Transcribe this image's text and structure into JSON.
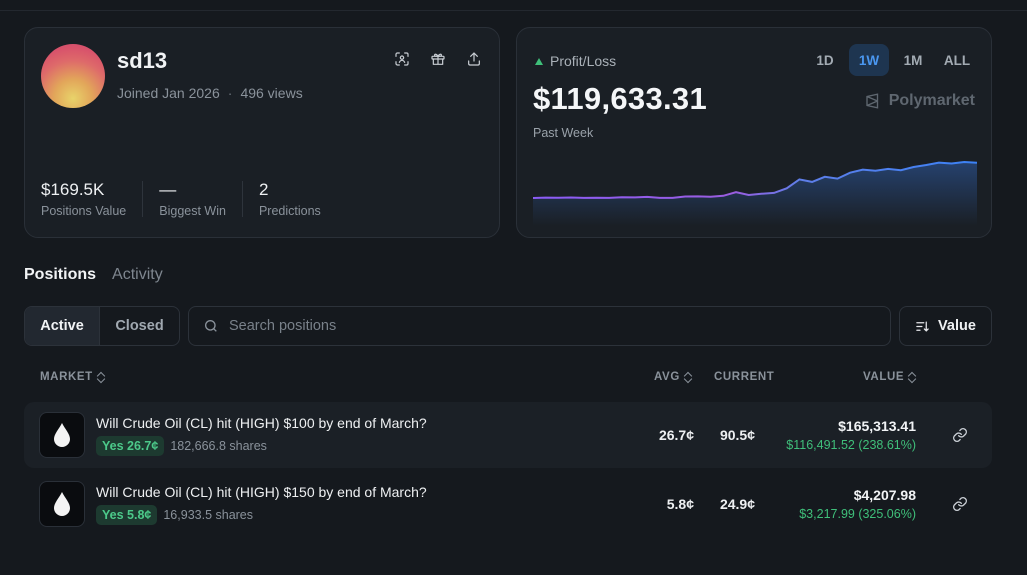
{
  "profile": {
    "username": "sd13",
    "joined": "Joined Jan 2026",
    "views": "496 views",
    "actions": [
      "scan-icon",
      "gift-icon",
      "share-icon"
    ],
    "stats": [
      {
        "value": "$169.5K",
        "label": "Positions Value"
      },
      {
        "value": "—",
        "label": "Biggest Win"
      },
      {
        "value": "2",
        "label": "Predictions"
      }
    ]
  },
  "pnl": {
    "label": "Profit/Loss",
    "value": "$119,633.31",
    "period": "Past Week",
    "ranges": [
      "1D",
      "1W",
      "1M",
      "ALL"
    ],
    "active_range": "1W",
    "brand": "Polymarket",
    "colors": {
      "line_start": "#8b5cf6",
      "line_end": "#3b82f6",
      "up": "#3fbf7a"
    }
  },
  "chart_data": {
    "type": "line",
    "title": "",
    "series": [
      {
        "values": [
          0,
          0.6,
          0.3,
          0.7,
          0.1,
          0.4,
          0.2,
          1.2,
          0.9,
          1.6,
          0.2,
          0.1,
          2.1,
          2.3,
          1.8,
          3.1,
          8.2,
          4.3,
          6.0,
          7.2,
          13.8,
          26.5,
          23.0,
          30.2,
          27.6,
          36.1,
          40.5,
          38.9,
          41.4,
          39.6,
          44.2,
          47.0,
          50.4,
          49.1,
          51.3,
          50.2
        ]
      }
    ]
  },
  "tabs": [
    "Positions",
    "Activity"
  ],
  "active_tab": "Positions",
  "filters": {
    "active": "Active",
    "closed": "Closed"
  },
  "search": {
    "placeholder": "Search positions"
  },
  "sort": {
    "label": "Value"
  },
  "table": {
    "headers": {
      "market": "MARKET",
      "avg": "AVG",
      "current": "CURRENT",
      "value": "VALUE"
    },
    "rows": [
      {
        "title": "Will Crude Oil (CL) hit (HIGH) $100 by end of March?",
        "badge": "Yes 26.7¢",
        "shares": "182,666.8 shares",
        "avg": "26.7¢",
        "current": "90.5¢",
        "value": "$165,313.41",
        "change": "$116,491.52 (238.61%)"
      },
      {
        "title": "Will Crude Oil (CL) hit (HIGH) $150 by end of March?",
        "badge": "Yes 5.8¢",
        "shares": "16,933.5 shares",
        "avg": "5.8¢",
        "current": "24.9¢",
        "value": "$4,207.98",
        "change": "$3,217.99 (325.06%)"
      }
    ]
  }
}
